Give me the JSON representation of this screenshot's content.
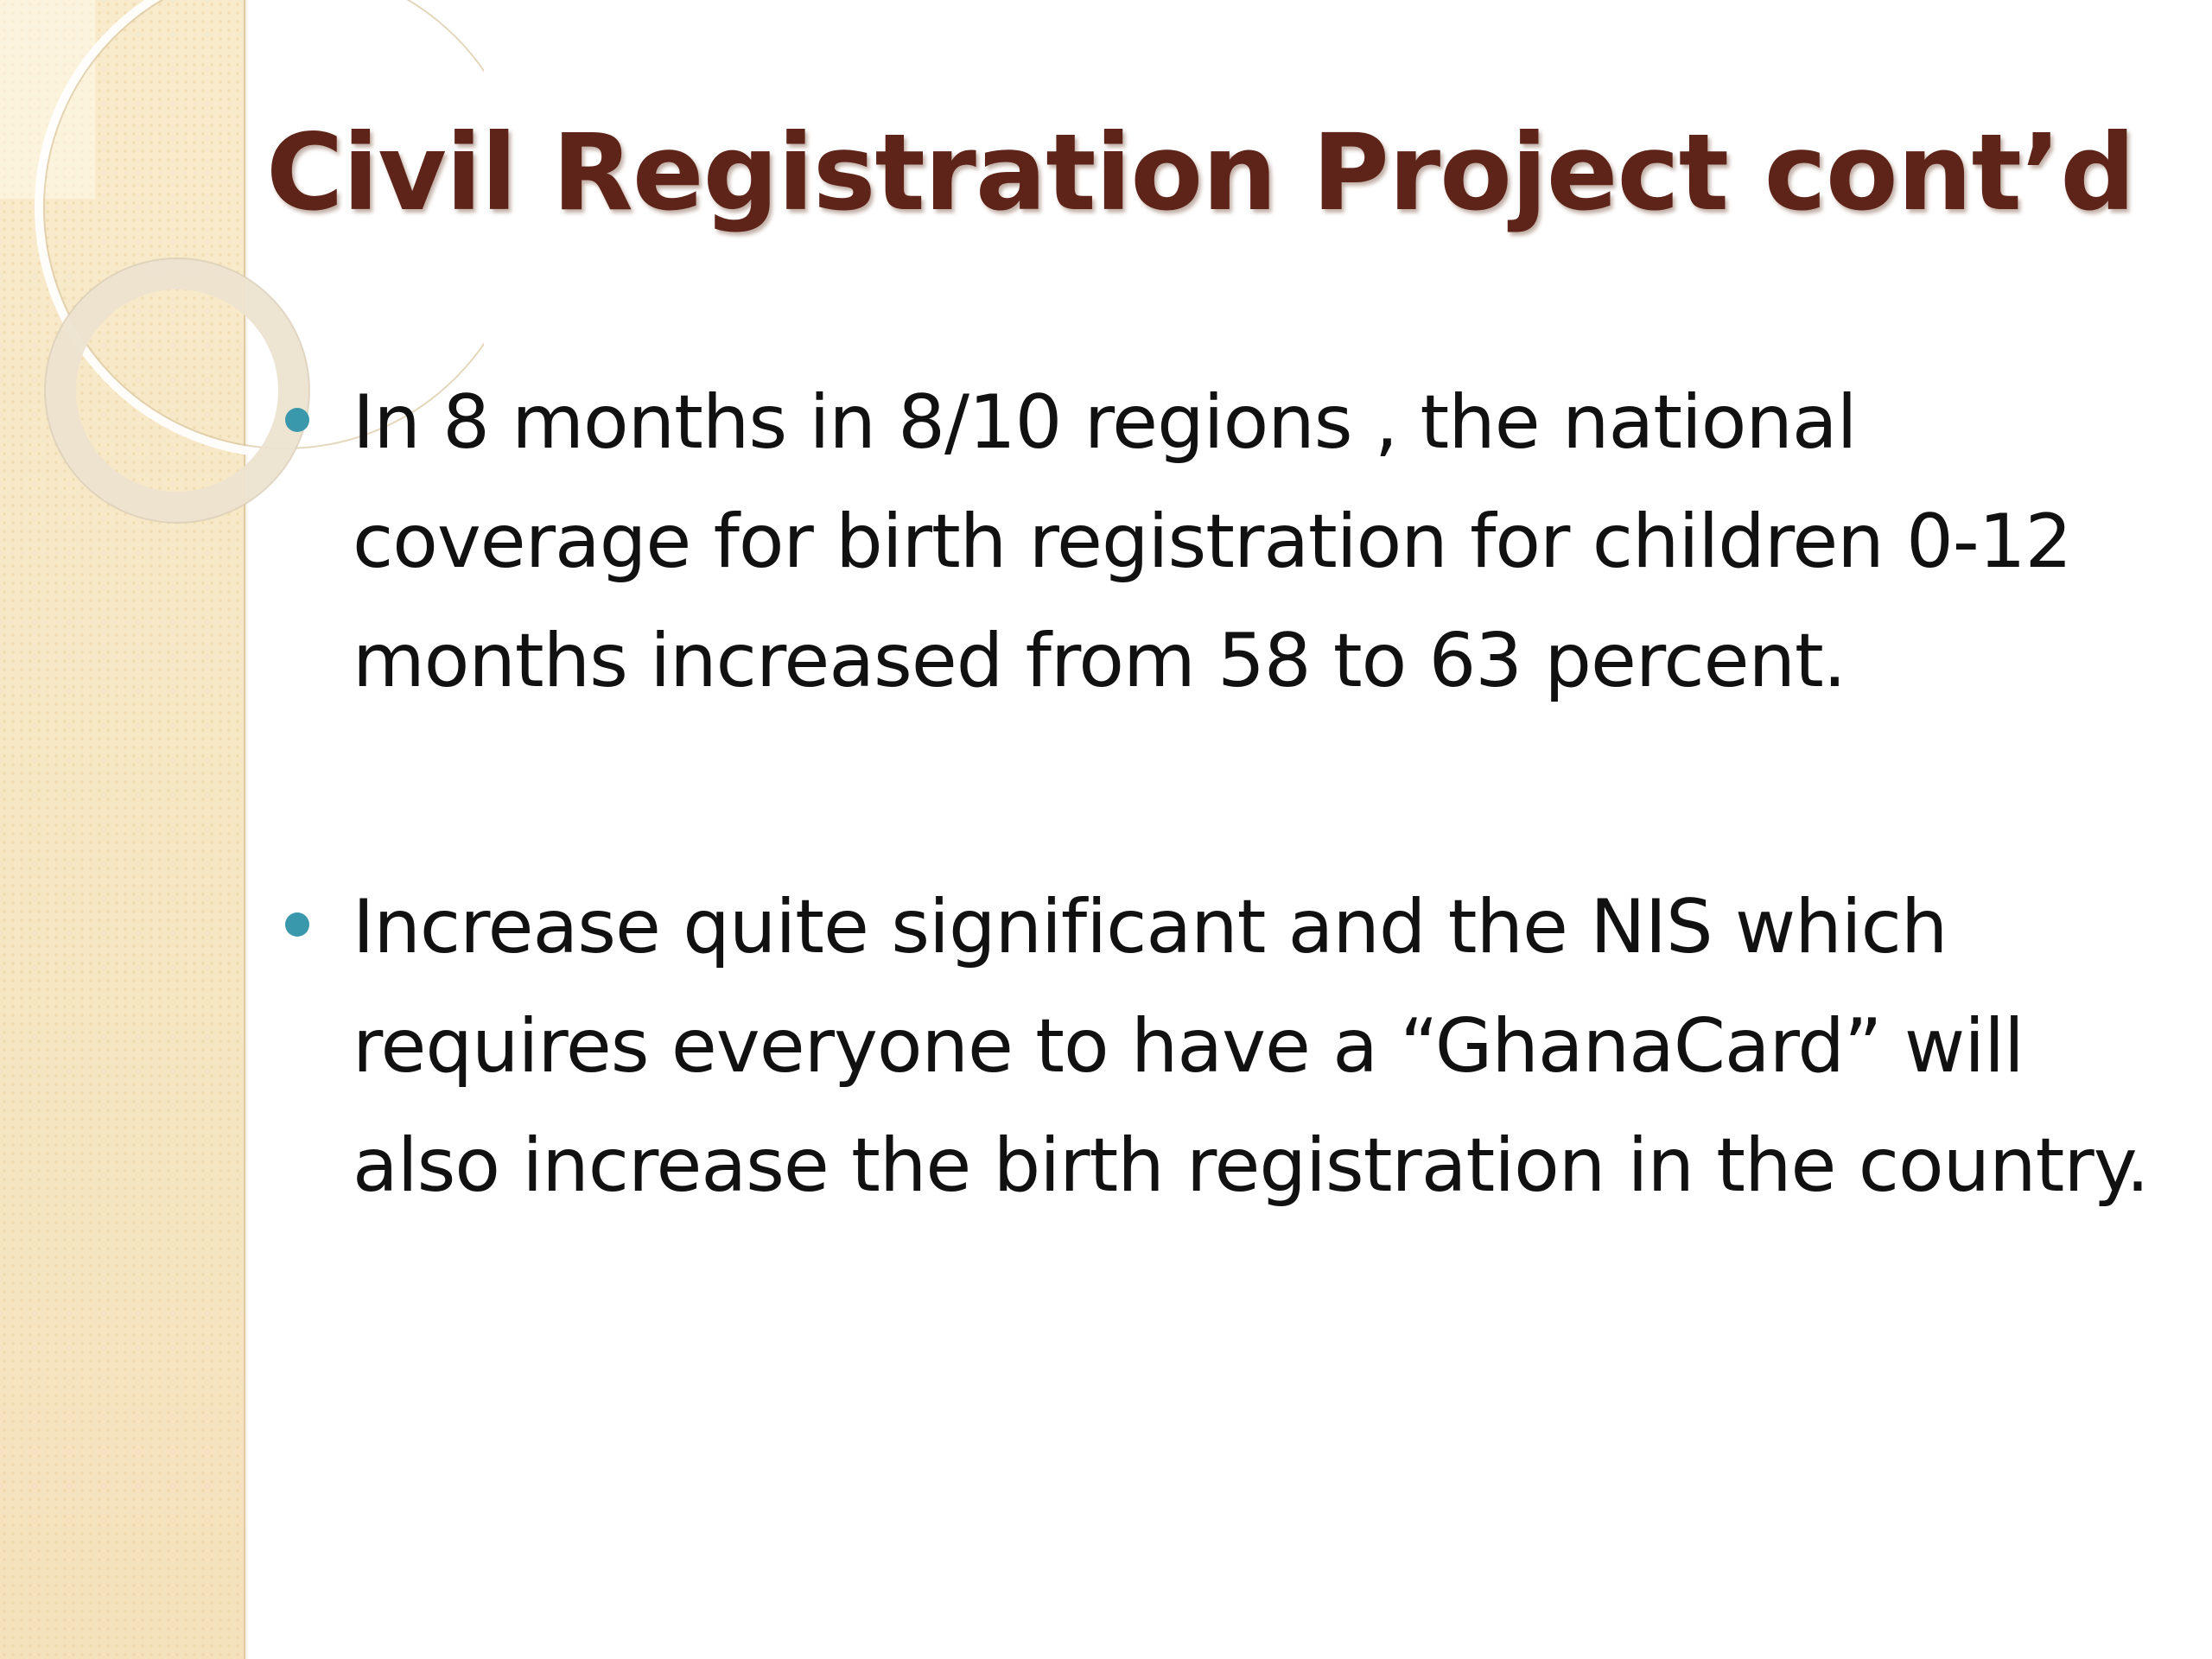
{
  "slide": {
    "title": "Civil Registration Project cont’d",
    "bullets": [
      {
        "text": "In 8 months in 8/10 regions , the national coverage for birth registration for children 0-12 months increased from 58 to 63 percent."
      },
      {
        "text": "Increase quite significant and the NIS which requires everyone to have a “GhanaCard” will also increase the birth registration in the country."
      }
    ]
  },
  "colors": {
    "title": "#5e2419",
    "bullet_marker": "#3a98ad",
    "side_panel": "#f6e6c3",
    "body_text": "#111111",
    "background": "#ffffff"
  }
}
